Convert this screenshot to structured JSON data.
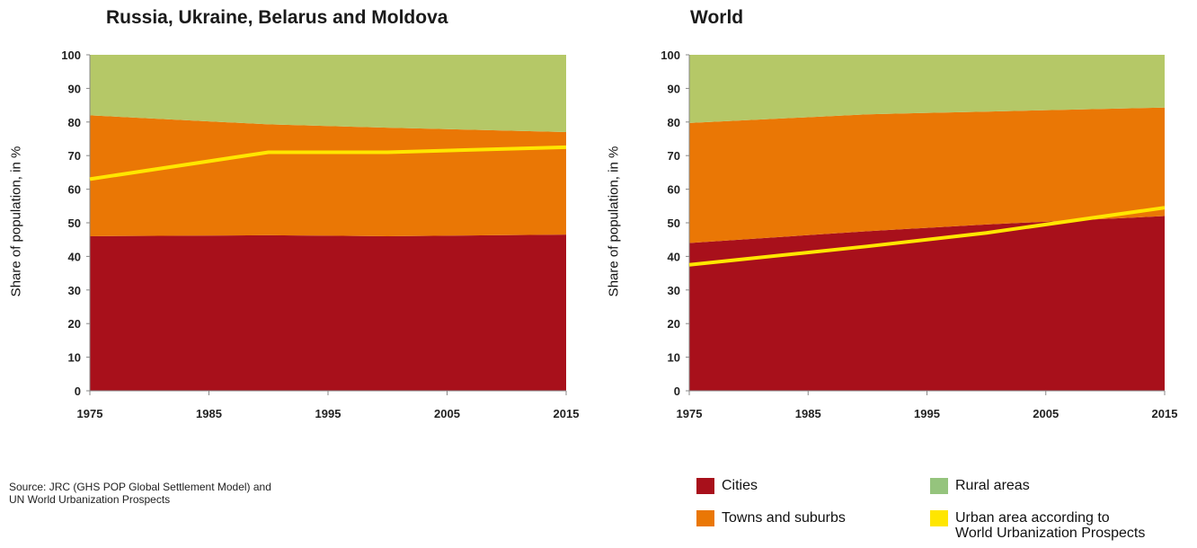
{
  "colors": {
    "cities": "#a8101b",
    "towns": "#ea7705",
    "rural": "#b5c867",
    "urban_line": "#ffe600",
    "legend_rural": "#95c47d"
  },
  "chart_data": [
    {
      "type": "area",
      "title": "Russia, Ukraine, Belarus and Moldova",
      "ylabel": "Share of population, in %",
      "xlabel": "",
      "ylim": [
        0,
        100
      ],
      "yticks": [
        0,
        10,
        20,
        30,
        40,
        50,
        60,
        70,
        80,
        90,
        100
      ],
      "xticks": [
        1975,
        1985,
        1995,
        2005,
        2015
      ],
      "xlim": [
        1975,
        2015
      ],
      "x": [
        1975,
        1990,
        2000,
        2015
      ],
      "series": [
        {
          "name": "Cities",
          "values": [
            46,
            46.3,
            46,
            46.5
          ]
        },
        {
          "name": "Towns and suburbs",
          "values": [
            36,
            33,
            32.3,
            30.5
          ]
        },
        {
          "name": "Rural areas",
          "values": [
            18,
            20.7,
            21.7,
            23
          ]
        }
      ],
      "line": {
        "name": "Urban area according to World Urbanization Prospects",
        "x": [
          1975,
          1990,
          2000,
          2015
        ],
        "values": [
          63,
          71,
          71,
          72.5
        ]
      }
    },
    {
      "type": "area",
      "title": "World",
      "ylabel": "Share of population, in %",
      "xlabel": "",
      "ylim": [
        0,
        100
      ],
      "yticks": [
        0,
        10,
        20,
        30,
        40,
        50,
        60,
        70,
        80,
        90,
        100
      ],
      "xticks": [
        1975,
        1985,
        1995,
        2005,
        2015
      ],
      "xlim": [
        1975,
        2015
      ],
      "x": [
        1975,
        1990,
        2000,
        2015
      ],
      "series": [
        {
          "name": "Cities",
          "values": [
            44,
            47.5,
            49.5,
            52
          ]
        },
        {
          "name": "Towns and suburbs",
          "values": [
            35.7,
            34.8,
            33.6,
            32.3
          ]
        },
        {
          "name": "Rural areas",
          "values": [
            20.3,
            17.7,
            16.9,
            15.7
          ]
        }
      ],
      "line": {
        "name": "Urban area according to World Urbanization Prospects",
        "x": [
          1975,
          1990,
          2000,
          2015
        ],
        "values": [
          37.5,
          43,
          47,
          54.5
        ]
      }
    }
  ],
  "source": {
    "line1": "Source: JRC (GHS POP Global Settlement Model) and",
    "line2": "UN World Urbanization Prospects"
  },
  "legend": {
    "cities": "Cities",
    "towns": "Towns and suburbs",
    "rural": "Rural areas",
    "urban_line1": "Urban area according to",
    "urban_line2": "World Urbanization Prospects"
  }
}
